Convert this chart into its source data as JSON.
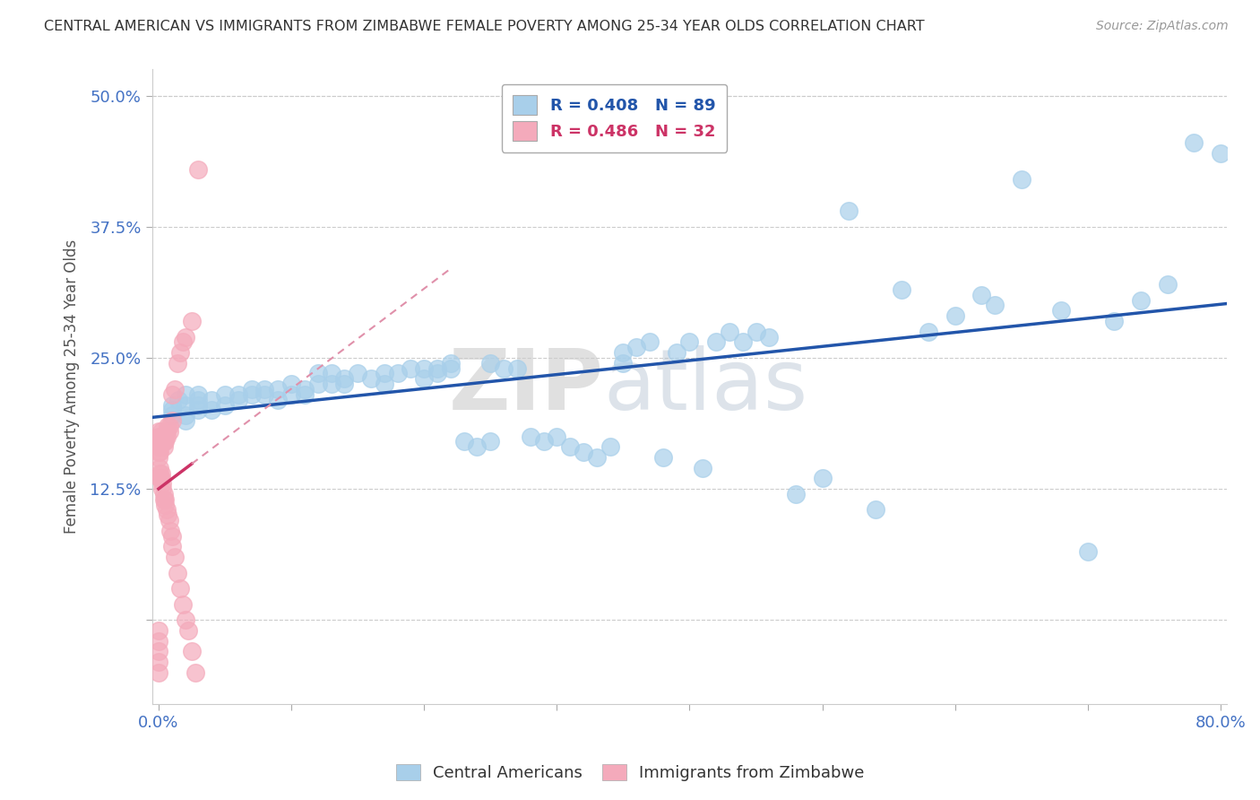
{
  "title": "CENTRAL AMERICAN VS IMMIGRANTS FROM ZIMBABWE FEMALE POVERTY AMONG 25-34 YEAR OLDS CORRELATION CHART",
  "source": "Source: ZipAtlas.com",
  "ylabel": "Female Poverty Among 25-34 Year Olds",
  "xlim": [
    -0.005,
    0.805
  ],
  "ylim": [
    -0.08,
    0.525
  ],
  "ytick_vals": [
    0.0,
    0.125,
    0.25,
    0.375,
    0.5
  ],
  "ytick_labels": [
    "",
    "12.5%",
    "25.0%",
    "37.5%",
    "50.0%"
  ],
  "xtick_vals": [
    0.0,
    0.1,
    0.2,
    0.3,
    0.4,
    0.5,
    0.6,
    0.7,
    0.8
  ],
  "xtick_labels": [
    "0.0%",
    "",
    "",
    "",
    "",
    "",
    "",
    "",
    "80.0%"
  ],
  "legend_entries": [
    "R = 0.408   N = 89",
    "R = 0.486   N = 32"
  ],
  "blue_color": "#A8CFEA",
  "pink_color": "#F4AABB",
  "blue_line_color": "#2255AA",
  "pink_line_color": "#CC3366",
  "pink_dash_color": "#E090AA",
  "watermark_zip": "ZIP",
  "watermark_atlas": "atlas",
  "blue_x": [
    0.01,
    0.01,
    0.01,
    0.015,
    0.02,
    0.02,
    0.02,
    0.02,
    0.03,
    0.03,
    0.03,
    0.03,
    0.04,
    0.04,
    0.05,
    0.05,
    0.06,
    0.06,
    0.07,
    0.07,
    0.08,
    0.08,
    0.09,
    0.09,
    0.1,
    0.1,
    0.11,
    0.11,
    0.12,
    0.12,
    0.13,
    0.13,
    0.14,
    0.14,
    0.15,
    0.16,
    0.17,
    0.17,
    0.18,
    0.19,
    0.2,
    0.2,
    0.21,
    0.21,
    0.22,
    0.22,
    0.23,
    0.24,
    0.25,
    0.25,
    0.26,
    0.27,
    0.28,
    0.29,
    0.3,
    0.31,
    0.32,
    0.33,
    0.34,
    0.35,
    0.35,
    0.36,
    0.37,
    0.38,
    0.39,
    0.4,
    0.41,
    0.42,
    0.43,
    0.44,
    0.45,
    0.46,
    0.48,
    0.5,
    0.52,
    0.54,
    0.56,
    0.58,
    0.6,
    0.62,
    0.63,
    0.65,
    0.68,
    0.7,
    0.72,
    0.74,
    0.76,
    0.78,
    0.8
  ],
  "blue_y": [
    0.195,
    0.2,
    0.205,
    0.21,
    0.195,
    0.205,
    0.215,
    0.19,
    0.2,
    0.21,
    0.215,
    0.205,
    0.2,
    0.21,
    0.205,
    0.215,
    0.21,
    0.215,
    0.215,
    0.22,
    0.215,
    0.22,
    0.21,
    0.22,
    0.215,
    0.225,
    0.22,
    0.215,
    0.225,
    0.235,
    0.225,
    0.235,
    0.23,
    0.225,
    0.235,
    0.23,
    0.225,
    0.235,
    0.235,
    0.24,
    0.24,
    0.23,
    0.24,
    0.235,
    0.245,
    0.24,
    0.17,
    0.165,
    0.245,
    0.17,
    0.24,
    0.24,
    0.175,
    0.17,
    0.175,
    0.165,
    0.16,
    0.155,
    0.165,
    0.245,
    0.255,
    0.26,
    0.265,
    0.155,
    0.255,
    0.265,
    0.145,
    0.265,
    0.275,
    0.265,
    0.275,
    0.27,
    0.12,
    0.135,
    0.39,
    0.105,
    0.315,
    0.275,
    0.29,
    0.31,
    0.3,
    0.42,
    0.295,
    0.065,
    0.285,
    0.305,
    0.32,
    0.455,
    0.445
  ],
  "pink_x": [
    0.0,
    0.0,
    0.0,
    0.0,
    0.0,
    0.0,
    0.001,
    0.001,
    0.001,
    0.001,
    0.002,
    0.002,
    0.003,
    0.003,
    0.004,
    0.004,
    0.005,
    0.005,
    0.006,
    0.006,
    0.007,
    0.008,
    0.008,
    0.01,
    0.01,
    0.012,
    0.014,
    0.016,
    0.018,
    0.02,
    0.025,
    0.03
  ],
  "pink_y": [
    0.18,
    0.175,
    0.17,
    0.165,
    0.16,
    0.155,
    0.175,
    0.17,
    0.165,
    0.16,
    0.18,
    0.175,
    0.175,
    0.17,
    0.17,
    0.165,
    0.175,
    0.17,
    0.18,
    0.175,
    0.185,
    0.18,
    0.185,
    0.19,
    0.215,
    0.22,
    0.245,
    0.255,
    0.265,
    0.27,
    0.285,
    0.43
  ],
  "pink_neg_x": [
    0.0,
    0.0,
    0.0,
    0.0,
    0.0,
    0.001,
    0.001,
    0.001,
    0.002,
    0.002,
    0.003,
    0.003,
    0.004,
    0.004,
    0.005,
    0.005,
    0.006,
    0.007,
    0.008,
    0.009,
    0.01,
    0.01,
    0.012,
    0.014,
    0.016,
    0.018,
    0.02,
    0.022,
    0.025,
    0.028
  ],
  "pink_neg_y": [
    -0.01,
    -0.02,
    -0.03,
    -0.04,
    -0.05,
    0.145,
    0.14,
    0.135,
    0.14,
    0.135,
    0.13,
    0.125,
    0.12,
    0.115,
    0.115,
    0.11,
    0.105,
    0.1,
    0.095,
    0.085,
    0.08,
    0.07,
    0.06,
    0.045,
    0.03,
    0.015,
    0.0,
    -0.01,
    -0.03,
    -0.05
  ]
}
